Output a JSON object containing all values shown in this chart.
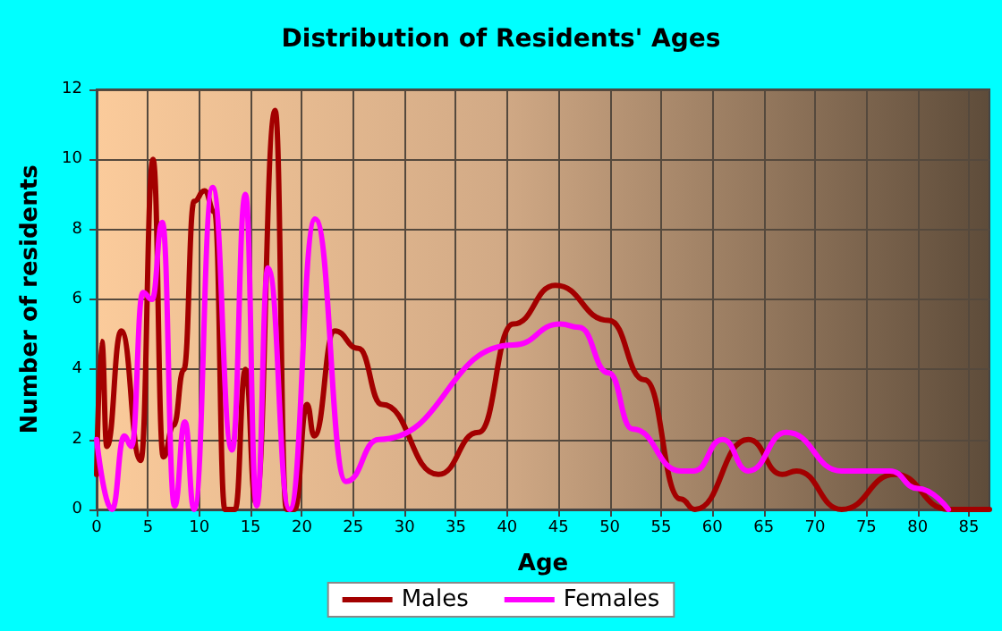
{
  "chart_data": {
    "type": "line",
    "title": "Distribution of Residents' Ages",
    "xlabel": "Age",
    "ylabel": "Number of residents",
    "xlim": [
      0,
      87
    ],
    "xticks": [
      0,
      5,
      10,
      15,
      20,
      25,
      30,
      35,
      40,
      45,
      50,
      55,
      60,
      65,
      70,
      75,
      80,
      85
    ],
    "ylim": [
      0,
      12
    ],
    "yticks": [
      0,
      2,
      4,
      6,
      8,
      10,
      12
    ],
    "grid": true,
    "legend": "bottom",
    "marker": "none",
    "line_style": "solid",
    "series": [
      {
        "name": "Males",
        "color": "#a30000",
        "x": [
          0,
          0.5,
          1,
          2.4,
          4.3,
          5.5,
          6.5,
          7.5,
          8.5,
          9.5,
          10.5,
          11.5,
          12.5,
          13.5,
          14.5,
          15.5,
          17.4,
          18.5,
          19.3,
          20.5,
          21.2,
          23.2,
          25.5,
          27.8,
          33.3,
          37.2,
          40.6,
          44.7,
          49.9,
          53.4,
          56.9,
          58.3,
          63.5,
          66.8,
          68.2,
          72.6,
          77.8,
          83,
          87
        ],
        "values": [
          1,
          4.8,
          1.8,
          5.1,
          1.4,
          10,
          1.5,
          2.4,
          4,
          8.8,
          9.1,
          8.5,
          0,
          0,
          4,
          0.2,
          11.4,
          0,
          0,
          3,
          2.1,
          5.1,
          4.6,
          3,
          1,
          2.2,
          5.3,
          6.4,
          5.4,
          3.7,
          0.3,
          0,
          2,
          1,
          1.1,
          0,
          1,
          0,
          0
        ]
      },
      {
        "name": "Females",
        "color": "#ff00ff",
        "x": [
          0,
          1.5,
          2.7,
          3.4,
          4.5,
          5.4,
          6.4,
          7.6,
          8.6,
          9.5,
          11.3,
          13.2,
          14.5,
          15.6,
          16.7,
          18.8,
          21.3,
          24.3,
          27.5,
          40.6,
          45.2,
          47,
          49.9,
          52.2,
          56.9,
          58.2,
          61,
          63.5,
          67.2,
          72.6,
          77.3,
          80,
          83
        ],
        "values": [
          2,
          0,
          2.1,
          1.8,
          6.2,
          6,
          8.2,
          0.1,
          2.5,
          0,
          9.2,
          1.7,
          9,
          0.1,
          6.9,
          0,
          8.3,
          0.8,
          2,
          4.7,
          5.3,
          5.2,
          3.9,
          2.3,
          1.1,
          1.1,
          2,
          1.1,
          2.2,
          1.1,
          1.1,
          0.6,
          0
        ]
      }
    ]
  }
}
